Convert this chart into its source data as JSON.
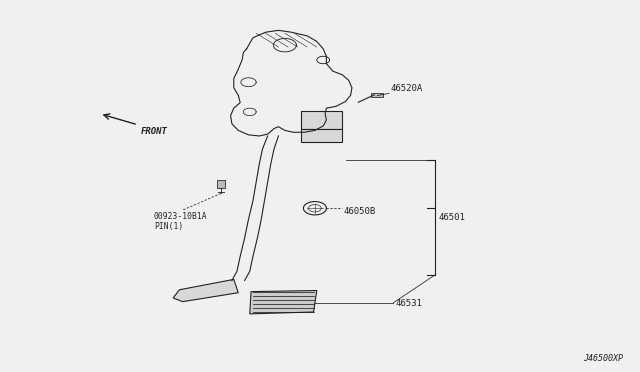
{
  "bg_color": "#f0f0f0",
  "line_color": "#222222",
  "part_number_diagram": "J46500XP",
  "label_46520A": "46520A",
  "label_46050B": "46050B",
  "label_46501": "46501",
  "label_46531": "46531",
  "label_pin": "00923-10B1A\nPIN(1)",
  "label_front": "FRONT"
}
